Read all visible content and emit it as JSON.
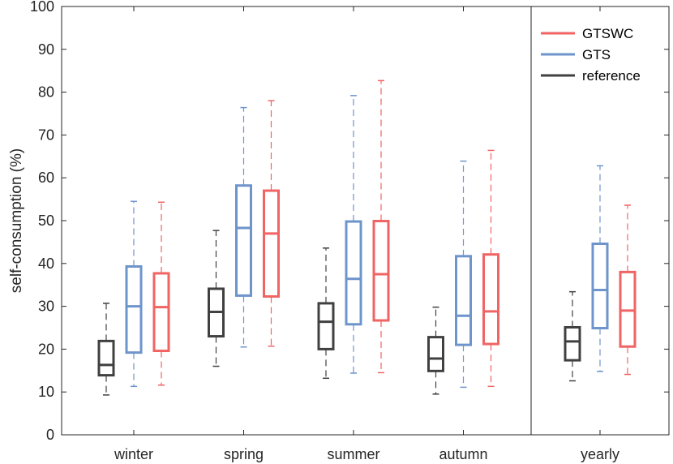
{
  "chart_data": {
    "type": "boxplot",
    "ylabel": "self-consumption (%)",
    "xlabel": "",
    "ylim": [
      0,
      100
    ],
    "yticks": [
      0,
      10,
      20,
      30,
      40,
      50,
      60,
      70,
      80,
      90,
      100
    ],
    "ytick_labels": [
      "0",
      "10",
      "20",
      "30",
      "40",
      "50",
      "60",
      "70",
      "80",
      "90",
      "100"
    ],
    "categories": [
      "winter",
      "spring",
      "summer",
      "autumn",
      "yearly"
    ],
    "separator_after_category": "autumn",
    "legend_position": "top-right",
    "series": [
      {
        "name": "reference",
        "color": "#404040",
        "boxes": [
          {
            "category": "winter",
            "min": 9.3,
            "q1": 13.9,
            "median": 16.3,
            "q3": 21.9,
            "max": 30.7
          },
          {
            "category": "spring",
            "min": 16.0,
            "q1": 23.0,
            "median": 28.7,
            "q3": 34.1,
            "max": 47.7
          },
          {
            "category": "summer",
            "min": 13.2,
            "q1": 20.0,
            "median": 26.4,
            "q3": 30.7,
            "max": 43.6
          },
          {
            "category": "autumn",
            "min": 9.5,
            "q1": 14.9,
            "median": 17.8,
            "q3": 22.8,
            "max": 29.8
          },
          {
            "category": "yearly",
            "min": 12.6,
            "q1": 17.4,
            "median": 21.8,
            "q3": 25.1,
            "max": 33.4
          }
        ]
      },
      {
        "name": "GTS",
        "color": "#6e94cc",
        "boxes": [
          {
            "category": "winter",
            "min": 11.3,
            "q1": 19.2,
            "median": 30.0,
            "q3": 39.3,
            "max": 54.5
          },
          {
            "category": "spring",
            "min": 20.5,
            "q1": 32.5,
            "median": 48.3,
            "q3": 58.2,
            "max": 76.4
          },
          {
            "category": "summer",
            "min": 14.4,
            "q1": 25.8,
            "median": 36.4,
            "q3": 49.8,
            "max": 79.2
          },
          {
            "category": "autumn",
            "min": 11.1,
            "q1": 21.0,
            "median": 27.8,
            "q3": 41.7,
            "max": 63.9
          },
          {
            "category": "yearly",
            "min": 14.8,
            "q1": 24.9,
            "median": 33.8,
            "q3": 44.6,
            "max": 62.8
          }
        ]
      },
      {
        "name": "GTSWC",
        "color": "#f06464",
        "boxes": [
          {
            "category": "winter",
            "min": 11.6,
            "q1": 19.6,
            "median": 29.8,
            "q3": 37.7,
            "max": 54.3
          },
          {
            "category": "spring",
            "min": 20.7,
            "q1": 32.3,
            "median": 47.0,
            "q3": 57.0,
            "max": 78.0
          },
          {
            "category": "summer",
            "min": 14.5,
            "q1": 26.7,
            "median": 37.5,
            "q3": 49.9,
            "max": 82.7
          },
          {
            "category": "autumn",
            "min": 11.3,
            "q1": 21.2,
            "median": 28.8,
            "q3": 42.1,
            "max": 66.4
          },
          {
            "category": "yearly",
            "min": 14.1,
            "q1": 20.6,
            "median": 29.0,
            "q3": 38.0,
            "max": 53.6
          }
        ]
      }
    ],
    "legend": [
      {
        "label": "GTSWC",
        "color": "#f06464"
      },
      {
        "label": "GTS",
        "color": "#6e94cc"
      },
      {
        "label": "reference",
        "color": "#404040"
      }
    ]
  }
}
